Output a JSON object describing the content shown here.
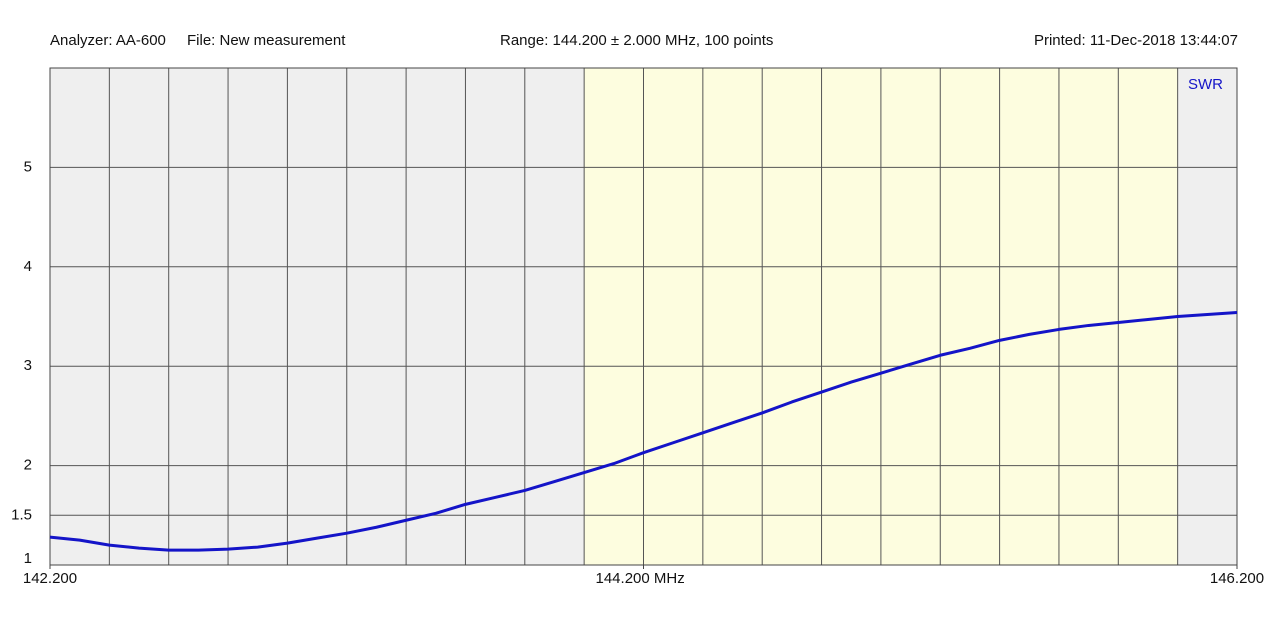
{
  "chart_data": {
    "type": "line",
    "header": [
      "Analyzer: AA-600",
      "File: New measurement",
      "Range: 144.200 ± 2.000 MHz, 100 points",
      "Printed: 11-Dec-2018 13:44:07"
    ],
    "x": [
      142.2,
      142.3,
      142.4,
      142.5,
      142.6,
      142.7,
      142.8,
      142.9,
      143.0,
      143.1,
      143.2,
      143.3,
      143.4,
      143.5,
      143.6,
      143.7,
      143.8,
      143.9,
      144.0,
      144.1,
      144.2,
      144.3,
      144.4,
      144.5,
      144.6,
      144.7,
      144.8,
      144.9,
      145.0,
      145.1,
      145.2,
      145.3,
      145.4,
      145.5,
      145.6,
      145.7,
      145.8,
      145.9,
      146.0,
      146.1,
      146.2
    ],
    "series": [
      {
        "name": "SWR",
        "color": "#1414c8",
        "values": [
          1.28,
          1.25,
          1.2,
          1.17,
          1.15,
          1.15,
          1.16,
          1.18,
          1.22,
          1.27,
          1.32,
          1.38,
          1.45,
          1.52,
          1.61,
          1.68,
          1.75,
          1.84,
          1.93,
          2.02,
          2.13,
          2.23,
          2.33,
          2.43,
          2.53,
          2.64,
          2.74,
          2.84,
          2.93,
          3.02,
          3.11,
          3.18,
          3.26,
          3.32,
          3.37,
          3.41,
          3.44,
          3.47,
          3.5,
          3.52,
          3.54
        ]
      }
    ],
    "xlim": [
      142.2,
      146.2
    ],
    "xticks": [
      {
        "value": 142.2,
        "label": "142.200"
      },
      {
        "value": 144.2,
        "label": "144.200 MHz"
      },
      {
        "value": 146.2,
        "label": "146.200"
      }
    ],
    "xgrid": [
      142.4,
      142.6,
      142.8,
      143.0,
      143.2,
      143.4,
      143.6,
      143.8,
      144.0,
      144.2,
      144.4,
      144.6,
      144.8,
      145.0,
      145.2,
      145.4,
      145.6,
      145.8,
      146.0
    ],
    "ylim": [
      1,
      6
    ],
    "yticks": [
      1,
      1.5,
      2,
      3,
      4,
      5
    ],
    "highlight_range": [
      144.0,
      146.0
    ],
    "background_color": "#efefef",
    "highlight_color": "#fdfddf",
    "grid": true
  }
}
